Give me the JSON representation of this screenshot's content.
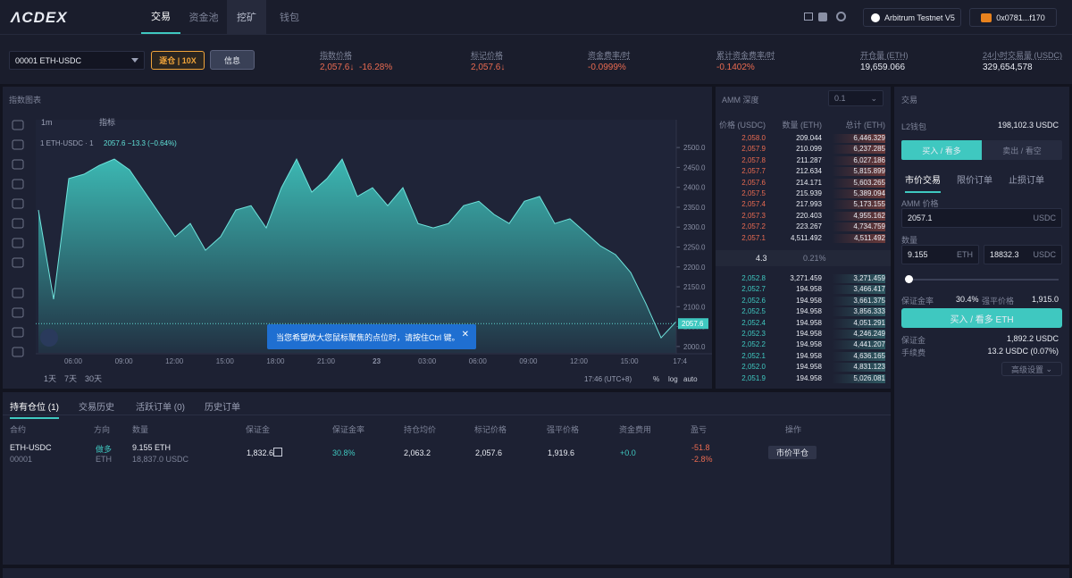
{
  "nav": {
    "logo": "ΛCDEX",
    "tabs": [
      "交易",
      "资金池",
      "挖矿",
      "钱包"
    ],
    "network": "Arbitrum Testnet V5",
    "wallet": "0x0781...f170"
  },
  "ticker": {
    "market": "00001 ETH-USDC",
    "margin_mode": "逐仓 | 10X",
    "info": "信息",
    "stats": [
      {
        "label": "指数价格",
        "value": "2,057.6↓",
        "change": "-16.28%"
      },
      {
        "label": "标记价格",
        "value": "2,057.6↓"
      },
      {
        "label": "资金费率/时",
        "value": "-0.0999%"
      },
      {
        "label": "累计资金费率/时",
        "value": "-0.1402%"
      },
      {
        "label": "开仓量 (ETH)",
        "value": "19,659.066"
      },
      {
        "label": "24小时交易量 (USDC)",
        "value": "329,654,578"
      }
    ]
  },
  "chart_panel": {
    "title": "指数图表",
    "interval": "1m",
    "indicators": "指标",
    "legend_symbol": "1 ETH-USDC · 1",
    "legend_values": "2057.6 −13.3 (−0.64%)",
    "time_ticks": [
      "06:00",
      "09:00",
      "12:00",
      "15:00",
      "18:00",
      "21:00",
      "23",
      "03:00",
      "06:00",
      "09:00",
      "12:00",
      "15:00",
      "17:4"
    ],
    "ranges": [
      "1天",
      "7天",
      "30天"
    ],
    "clock": "17:46 (UTC+8)",
    "scale_options": [
      "%",
      "log",
      "auto"
    ],
    "tooltip": "当您希望放大您鼠标聚焦的点位时，请按住Ctrl 键。"
  },
  "chart_data": {
    "type": "area",
    "color": "#3fc8c0",
    "ylim": [
      1984,
      2534
    ],
    "yticks": [
      {
        "value": 2000,
        "label": "2000.0"
      },
      {
        "value": 2050,
        "label": "2050.0"
      },
      {
        "value": 2100,
        "label": "2100.0"
      },
      {
        "value": 2150,
        "label": "2150.0"
      },
      {
        "value": 2200,
        "label": "2200.0"
      },
      {
        "value": 2250,
        "label": "2250.0"
      },
      {
        "value": 2300,
        "label": "2300.0"
      },
      {
        "value": 2350,
        "label": "2350.0"
      },
      {
        "value": 2400,
        "label": "2400.0"
      },
      {
        "value": 2450,
        "label": "2450.0"
      },
      {
        "value": 2500,
        "label": "2500.0"
      }
    ],
    "last_price": 2057.6,
    "values": [
      2343,
      2119,
      2422,
      2433,
      2455,
      2471,
      2444,
      2388,
      2332,
      2276,
      2309,
      2242,
      2276,
      2343,
      2354,
      2298,
      2399,
      2471,
      2388,
      2422,
      2471,
      2377,
      2399,
      2354,
      2399,
      2309,
      2298,
      2309,
      2354,
      2365,
      2332,
      2309,
      2365,
      2377,
      2309,
      2321,
      2287,
      2253,
      2231,
      2186,
      2108,
      2022,
      2063
    ]
  },
  "orderbook": {
    "title": "AMM 深度",
    "step": "0.1",
    "headers": [
      "价格 (USDC)",
      "数量 (ETH)",
      "总计 (ETH)"
    ],
    "asks": [
      [
        "2,058.0",
        "209.044",
        "6,446.329"
      ],
      [
        "2,057.9",
        "210.099",
        "6,237.285"
      ],
      [
        "2,057.8",
        "211.287",
        "6,027.186"
      ],
      [
        "2,057.7",
        "212.634",
        "5,815.899"
      ],
      [
        "2,057.6",
        "214.171",
        "5,603.265"
      ],
      [
        "2,057.5",
        "215.939",
        "5,389.094"
      ],
      [
        "2,057.4",
        "217.993",
        "5,173.155"
      ],
      [
        "2,057.3",
        "220.403",
        "4,955.162"
      ],
      [
        "2,057.2",
        "223.267",
        "4,734.759"
      ],
      [
        "2,057.1",
        "4,511.492",
        "4,511.492"
      ]
    ],
    "spread": "4.3",
    "spread_pct": "0.21%",
    "bids": [
      [
        "2,052.8",
        "3,271.459",
        "3,271.459"
      ],
      [
        "2,052.7",
        "194.958",
        "3,466.417"
      ],
      [
        "2,052.6",
        "194.958",
        "3,661.375"
      ],
      [
        "2,052.5",
        "194.958",
        "3,856.333"
      ],
      [
        "2,052.4",
        "194.958",
        "4,051.291"
      ],
      [
        "2,052.3",
        "194.958",
        "4,246.249"
      ],
      [
        "2,052.2",
        "194.958",
        "4,441.207"
      ],
      [
        "2,052.1",
        "194.958",
        "4,636.165"
      ],
      [
        "2,052.0",
        "194.958",
        "4,831.123"
      ],
      [
        "2,051.9",
        "194.958",
        "5,026.081"
      ]
    ]
  },
  "trade": {
    "title": "交易",
    "wallet_label": "L2钱包",
    "wallet_value": "198,102.3 USDC",
    "buy": "买入 / 看多",
    "sell": "卖出 / 看空",
    "tabs": [
      "市价交易",
      "限价订单",
      "止损订单"
    ],
    "price_label": "AMM 价格",
    "price": "2057.1",
    "price_unit": "USDC",
    "amount_label": "数量",
    "amount": "9.155",
    "amount_unit": "ETH",
    "amount_usdc": "18832.3",
    "amount_usdc_unit": "USDC",
    "margin_ratio_label": "保证金率",
    "margin_ratio": "30.4%",
    "liq_label": "强平价格",
    "liq_price": "1,915.0",
    "submit": "买入 / 看多 ETH",
    "margin_label": "保证金",
    "margin": "1,892.2 USDC",
    "fee_label": "手续费",
    "fee": "13.2 USDC (0.07%)",
    "advanced": "高级设置"
  },
  "positions": {
    "tabs": [
      "持有仓位 (1)",
      "交易历史",
      "活跃订单 (0)",
      "历史订单"
    ],
    "headers": [
      "合约",
      "方向",
      "数量",
      "保证金",
      "保证金率",
      "持仓均价",
      "标记价格",
      "强平价格",
      "资金费用",
      "盈亏",
      "操作"
    ],
    "row": {
      "contract": "ETH-USDC",
      "id": "00001",
      "side": "做多",
      "side_asset": "ETH",
      "size": "9.155 ETH",
      "size_usdc": "18,837.0 USDC",
      "margin": "1,832.6",
      "margin_ratio": "30.8%",
      "entry": "2,063.2",
      "mark": "2,057.6",
      "liq": "1,919.6",
      "funding": "+0.0",
      "pnl": "-51.8",
      "pnl_pct": "-2.8%",
      "action": "市价平仓"
    }
  }
}
